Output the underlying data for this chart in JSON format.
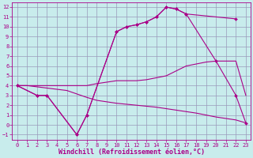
{
  "background_color": "#c8ecec",
  "grid_color": "#9999bb",
  "line_color": "#aa0088",
  "xlabel": "Windchill (Refroidissement éolien,°C)",
  "xlim": [
    -0.5,
    23.5
  ],
  "ylim": [
    -1.5,
    12.5
  ],
  "xticks": [
    0,
    1,
    2,
    3,
    4,
    5,
    6,
    7,
    8,
    9,
    10,
    11,
    12,
    13,
    14,
    15,
    16,
    17,
    18,
    19,
    20,
    21,
    22,
    23
  ],
  "yticks": [
    -1,
    0,
    1,
    2,
    3,
    4,
    5,
    6,
    7,
    8,
    9,
    10,
    11,
    12
  ],
  "tick_fontsize": 5.0,
  "xlabel_fontsize": 6.0,
  "line1_x": [
    0,
    2,
    3,
    6,
    7,
    10,
    11,
    12,
    13,
    14,
    15,
    16,
    17,
    22
  ],
  "line1_y": [
    4,
    3,
    3,
    -1,
    1,
    9.5,
    10,
    10.2,
    10.5,
    11,
    12,
    11.8,
    11.3,
    10.8
  ],
  "line2_x": [
    0,
    2,
    3,
    6,
    7,
    10,
    11,
    12,
    13,
    14,
    15,
    16,
    17,
    20,
    22,
    23
  ],
  "line2_y": [
    4,
    3,
    3,
    -1,
    1,
    9.5,
    10,
    10.2,
    10.5,
    11,
    12,
    11.8,
    11.3,
    6.5,
    3,
    0.2
  ],
  "line3_x": [
    0,
    1,
    5,
    7,
    8,
    10,
    11,
    12,
    13,
    14,
    15,
    16,
    17,
    18,
    19,
    20,
    22,
    23
  ],
  "line3_y": [
    4,
    4,
    4,
    4,
    4.2,
    4.5,
    4.5,
    4.5,
    4.6,
    4.8,
    5.0,
    5.5,
    6.0,
    6.2,
    6.4,
    6.5,
    6.5,
    3.0
  ],
  "line4_x": [
    0,
    1,
    5,
    7,
    8,
    10,
    12,
    14,
    16,
    18,
    20,
    22,
    23
  ],
  "line4_y": [
    4,
    4,
    3.5,
    2.8,
    2.5,
    2.2,
    2.0,
    1.8,
    1.5,
    1.2,
    0.8,
    0.5,
    0.2
  ]
}
